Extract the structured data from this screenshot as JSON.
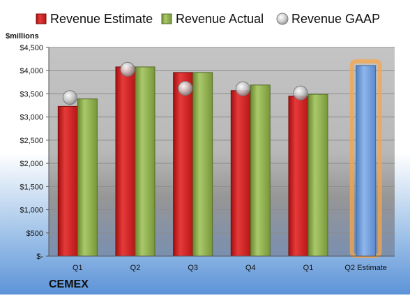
{
  "chart_data": {
    "type": "bar",
    "title": "",
    "company": "CEMEX",
    "ylabel": "$millions",
    "xlabel": "",
    "ylim": [
      0,
      4500
    ],
    "yticks": [
      0,
      500,
      1000,
      1500,
      2000,
      2500,
      3000,
      3500,
      4000,
      4500
    ],
    "ytick_labels": [
      "$-",
      "$500",
      "$1,000",
      "$1,500",
      "$2,000",
      "$2,500",
      "$3,000",
      "$3,500",
      "$4,000",
      "$4,500"
    ],
    "categories": [
      "Q1",
      "Q2",
      "Q3",
      "Q4",
      "Q1",
      "Q2 Estimate"
    ],
    "grid": true,
    "legend_position": "top",
    "series": [
      {
        "name": "Revenue Estimate",
        "kind": "bar",
        "color": "#d42020",
        "values": [
          3230,
          4080,
          3960,
          3570,
          3450,
          null
        ]
      },
      {
        "name": "Revenue Actual",
        "kind": "bar",
        "color": "#8aad4a",
        "values": [
          3390,
          4080,
          3960,
          3690,
          3490,
          null
        ]
      },
      {
        "name": "Revenue GAAP",
        "kind": "marker",
        "color": "#c0c0c0",
        "values": [
          3420,
          4030,
          3620,
          3610,
          3520,
          null
        ]
      },
      {
        "name": "Q2 Estimate",
        "kind": "bar",
        "color": "#6a98d8",
        "highlight": "#f5a54a",
        "values": [
          null,
          null,
          null,
          null,
          null,
          4110
        ]
      }
    ]
  }
}
